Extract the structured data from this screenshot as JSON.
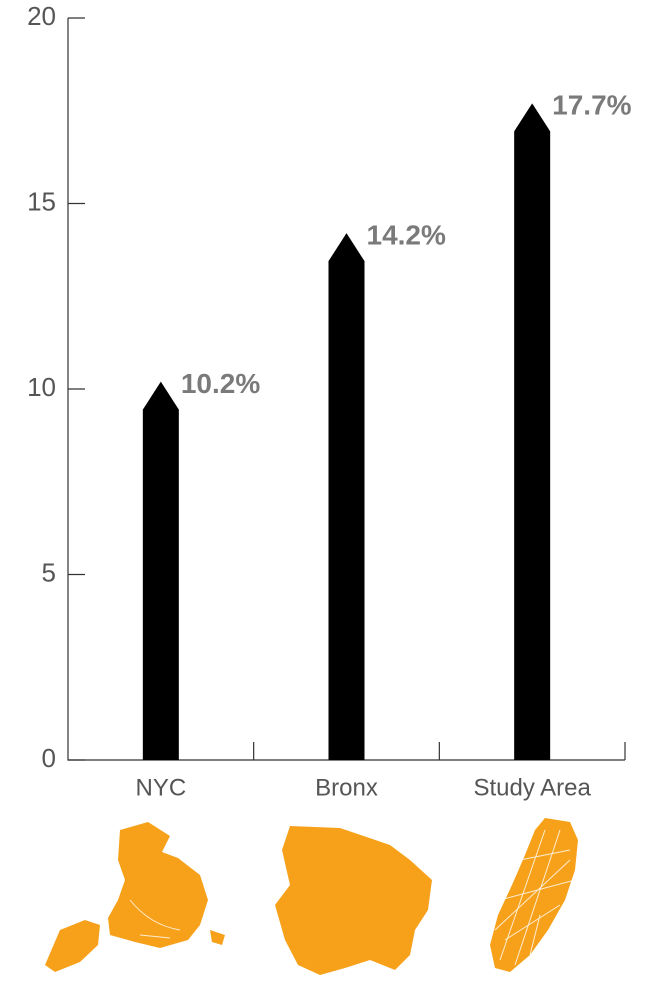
{
  "chart_data": {
    "type": "bar",
    "categories": [
      "NYC",
      "Bronx",
      "Study Area"
    ],
    "values": [
      10.2,
      14.2,
      17.7
    ],
    "value_labels": [
      "10.2%",
      "14.2%",
      "17.7%"
    ],
    "color": "#000000",
    "ylim": [
      0,
      20
    ],
    "yticks": [
      0,
      5,
      10,
      15,
      20
    ]
  }
}
